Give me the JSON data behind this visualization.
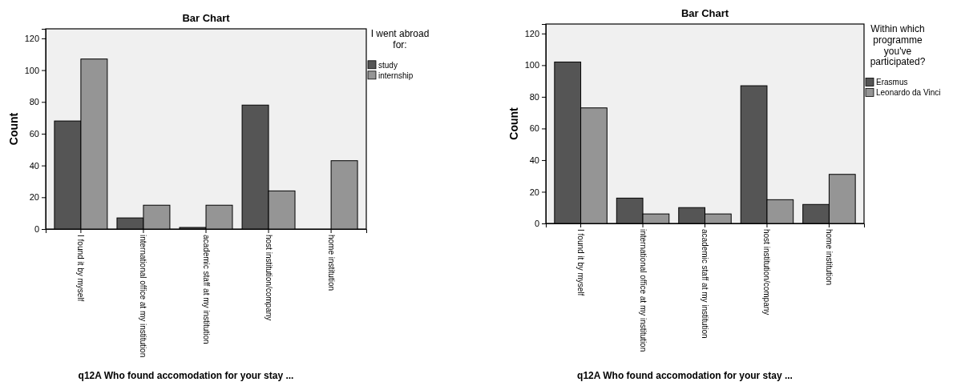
{
  "chart_data": [
    {
      "type": "bar",
      "title": "Bar Chart",
      "xlabel": "q12A Who found accomodation for your stay ...",
      "ylabel": "Count",
      "legend_title": "I went abroad for:",
      "legend": "right",
      "categories": [
        "I found it by myself",
        "international office at my institution",
        "academic staff at my institution",
        "host institution/company",
        "home institution"
      ],
      "series": [
        {
          "name": "study",
          "color": "#555555",
          "values": [
            68,
            7,
            1,
            78,
            0
          ]
        },
        {
          "name": "internship",
          "color": "#959595",
          "values": [
            107,
            15,
            15,
            24,
            43
          ]
        }
      ],
      "ylim": [
        0,
        126
      ],
      "yticks": [
        0,
        20,
        40,
        60,
        80,
        100,
        120
      ]
    },
    {
      "type": "bar",
      "title": "Bar Chart",
      "xlabel": "q12A Who found accomodation for your stay ...",
      "ylabel": "Count",
      "legend_title": "Within which programme you've participated?",
      "legend": "right",
      "categories": [
        "I found it by myself",
        "international office at my institution",
        "academic staff at my institution",
        "host institution/company",
        "home institution"
      ],
      "series": [
        {
          "name": "Erasmus",
          "color": "#555555",
          "values": [
            102,
            16,
            10,
            87,
            12
          ]
        },
        {
          "name": "Leonardo da Vinci",
          "color": "#959595",
          "values": [
            73,
            6,
            6,
            15,
            31
          ]
        }
      ],
      "ylim": [
        0,
        126
      ],
      "yticks": [
        0,
        20,
        40,
        60,
        80,
        100,
        120
      ]
    }
  ]
}
